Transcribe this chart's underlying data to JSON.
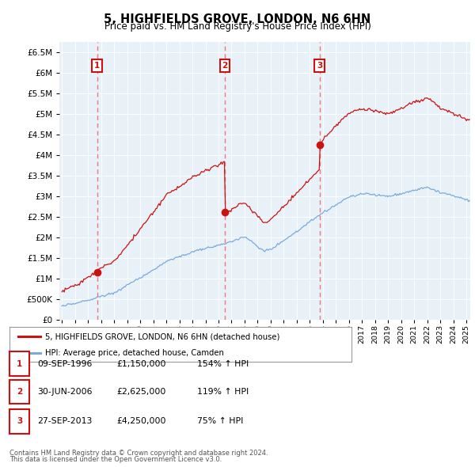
{
  "title": "5, HIGHFIELDS GROVE, LONDON, N6 6HN",
  "subtitle": "Price paid vs. HM Land Registry's House Price Index (HPI)",
  "purchases": [
    {
      "date_num": 1996.69,
      "price": 1150000,
      "label": "1",
      "date_str": "09-SEP-1996",
      "pct": "154%"
    },
    {
      "date_num": 2006.5,
      "price": 2625000,
      "label": "2",
      "date_str": "30-JUN-2006",
      "pct": "119%"
    },
    {
      "date_num": 2013.74,
      "price": 4250000,
      "label": "3",
      "date_str": "27-SEP-2013",
      "pct": "75%"
    }
  ],
  "legend_line1": "5, HIGHFIELDS GROVE, LONDON, N6 6HN (detached house)",
  "legend_line2": "HPI: Average price, detached house, Camden",
  "footer1": "Contains HM Land Registry data © Crown copyright and database right 2024.",
  "footer2": "This data is licensed under the Open Government Licence v3.0.",
  "table_rows": [
    [
      "1",
      "09-SEP-1996",
      "£1,150,000",
      "154% ↑ HPI"
    ],
    [
      "2",
      "30-JUN-2006",
      "£2,625,000",
      "119% ↑ HPI"
    ],
    [
      "3",
      "27-SEP-2013",
      "£4,250,000",
      "75% ↑ HPI"
    ]
  ],
  "price_line_color": "#cc1111",
  "hpi_line_color": "#7aaadd",
  "dashed_color": "#ee7777",
  "label_box_color": "#cc1111",
  "ylim_max": 6750000,
  "ylim_min": 0,
  "xlim_min": 1993.8,
  "xlim_max": 2025.3,
  "bg_color": "#e8f0f8",
  "hatch_color": "#d0dce8"
}
